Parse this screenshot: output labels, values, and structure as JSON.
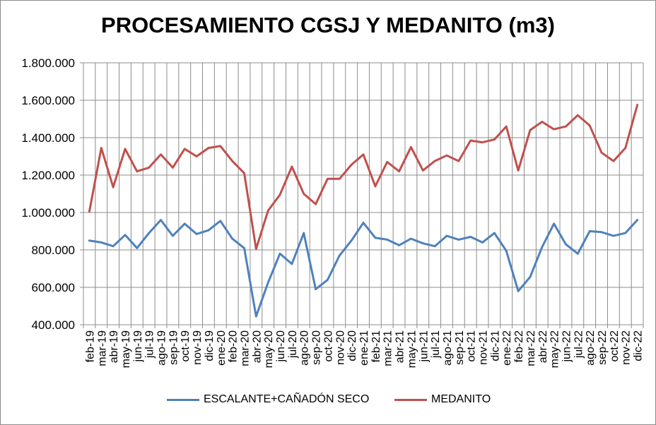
{
  "chart_data": {
    "type": "line",
    "title": "PROCESAMIENTO CGSJ Y MEDANITO (m3)",
    "xlabel": "",
    "ylabel": "",
    "ylim": [
      400000,
      1800000
    ],
    "yticks": [
      400000,
      600000,
      800000,
      1000000,
      1200000,
      1400000,
      1600000,
      1800000
    ],
    "ytick_labels": [
      "400.000",
      "600.000",
      "800.000",
      "1.000.000",
      "1.200.000",
      "1.400.000",
      "1.600.000",
      "1.800.000"
    ],
    "grid": true,
    "legend_position": "bottom",
    "categories": [
      "feb-19",
      "mar-19",
      "abr-19",
      "may-19",
      "jun-19",
      "jul-19",
      "ago-19",
      "sep-19",
      "oct-19",
      "nov-19",
      "dic-19",
      "ene-20",
      "feb-20",
      "mar-20",
      "abr-20",
      "may-20",
      "jun-20",
      "jul-20",
      "ago-20",
      "sep-20",
      "oct-20",
      "nov-20",
      "dic-20",
      "ene-21",
      "feb-21",
      "mar-21",
      "abr-21",
      "may-21",
      "jun-21",
      "jul-21",
      "ago-21",
      "sep-21",
      "oct-21",
      "nov-21",
      "dic-21",
      "ene-22",
      "feb-22",
      "mar-22",
      "abr-22",
      "may-22",
      "jun-22",
      "jul-22",
      "ago-22",
      "sep-22",
      "oct-22",
      "nov-22",
      "dic-22"
    ],
    "series": [
      {
        "name": "ESCALANTE+CAÑADÓN SECO",
        "color": "#4f81bd",
        "values": [
          850000,
          840000,
          820000,
          880000,
          810000,
          890000,
          960000,
          875000,
          940000,
          885000,
          905000,
          955000,
          860000,
          810000,
          445000,
          625000,
          780000,
          725000,
          890000,
          590000,
          640000,
          770000,
          850000,
          945000,
          865000,
          855000,
          825000,
          860000,
          835000,
          820000,
          875000,
          855000,
          870000,
          840000,
          890000,
          795000,
          580000,
          655000,
          815000,
          940000,
          830000,
          780000,
          900000,
          895000,
          875000,
          890000,
          960000
        ]
      },
      {
        "name": "MEDANITO",
        "color": "#c0504d",
        "values": [
          1005000,
          1345000,
          1135000,
          1340000,
          1220000,
          1240000,
          1310000,
          1240000,
          1340000,
          1300000,
          1345000,
          1355000,
          1275000,
          1210000,
          805000,
          1010000,
          1095000,
          1245000,
          1100000,
          1045000,
          1180000,
          1180000,
          1255000,
          1310000,
          1140000,
          1270000,
          1220000,
          1350000,
          1225000,
          1275000,
          1305000,
          1275000,
          1385000,
          1375000,
          1390000,
          1460000,
          1225000,
          1440000,
          1485000,
          1445000,
          1460000,
          1520000,
          1465000,
          1320000,
          1275000,
          1345000,
          1575000
        ]
      }
    ]
  }
}
